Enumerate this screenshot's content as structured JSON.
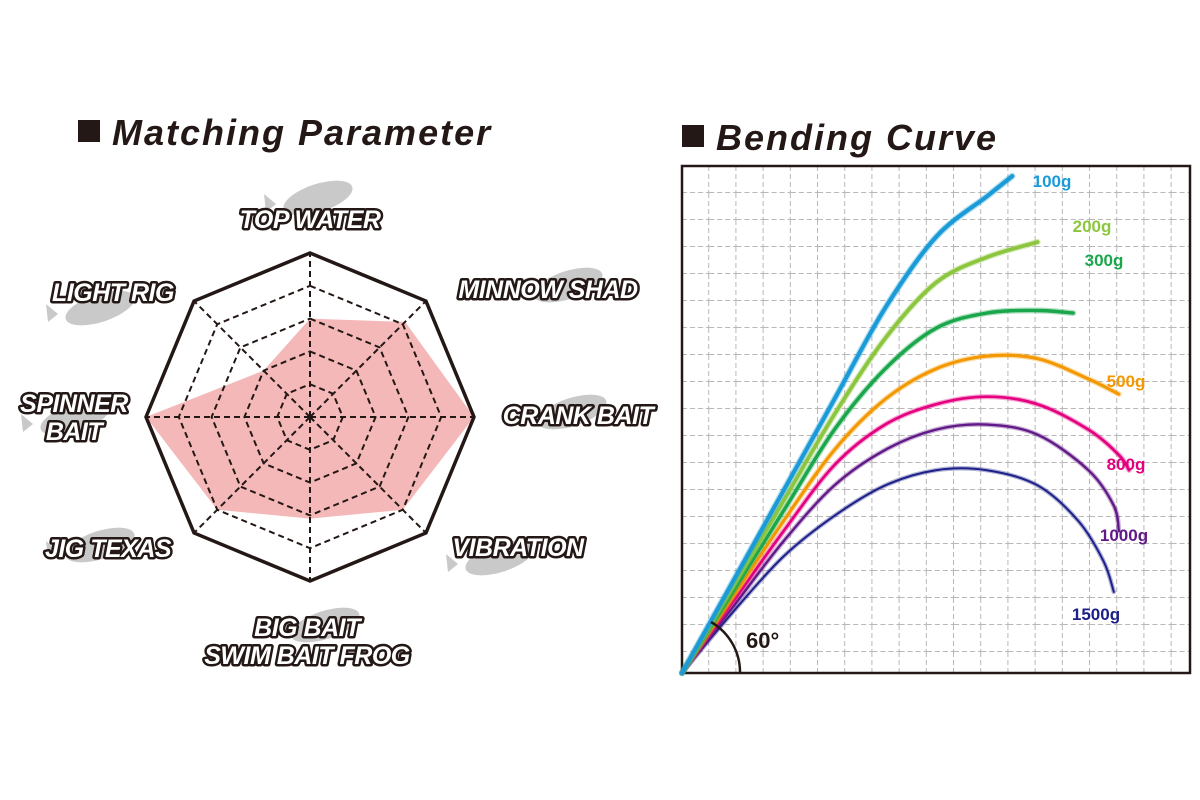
{
  "chart_data": [
    {
      "type": "radar",
      "title": "Matching Parameter",
      "axes": [
        "TOP WATER",
        "MINNOW SHAD",
        "CRANK BAIT",
        "VIBRATION",
        "BIG BAIT\nSWIM BAIT  FROG",
        "JIG  TEXAS",
        "SPINNER\nBAIT",
        "LIGHT RIG"
      ],
      "max": 5,
      "rings": 5,
      "values": [
        3.0,
        4.1,
        5.0,
        4.0,
        3.1,
        4.0,
        5.0,
        2.0
      ],
      "fill_color": "#f4b8b8",
      "grid": "dashed",
      "icons": [
        "top-water-lure-icon",
        "minnow-lure-icon",
        "crank-bait-lure-icon",
        "vibration-lure-icon",
        "swim-bait-lure-icon",
        "jig-lure-icon",
        "spinner-bait-lure-icon",
        "light-rig-lure-icon"
      ]
    },
    {
      "type": "line",
      "title": "Bending Curve",
      "angle_label": "60°",
      "grid": true,
      "xlim": [
        0,
        100
      ],
      "ylim": [
        0,
        100
      ],
      "series": [
        {
          "name": "100g",
          "color": "#1a9bd7",
          "points": [
            [
              0,
              0
            ],
            [
              10,
              18
            ],
            [
              20,
              36
            ],
            [
              30,
              54
            ],
            [
              40,
              72
            ],
            [
              50,
              86
            ],
            [
              60,
              94
            ],
            [
              65,
              98
            ]
          ]
        },
        {
          "name": "200g",
          "color": "#8cc63f",
          "points": [
            [
              0,
              0
            ],
            [
              10,
              17
            ],
            [
              20,
              34
            ],
            [
              30,
              51
            ],
            [
              40,
              66
            ],
            [
              50,
              77
            ],
            [
              60,
              82
            ],
            [
              70,
              85
            ]
          ]
        },
        {
          "name": "300g",
          "color": "#1aa64a",
          "points": [
            [
              0,
              0
            ],
            [
              10,
              16
            ],
            [
              20,
              32
            ],
            [
              30,
              48
            ],
            [
              40,
              60
            ],
            [
              50,
              68
            ],
            [
              60,
              71
            ],
            [
              70,
              71.5
            ],
            [
              77,
              71
            ]
          ]
        },
        {
          "name": "500g",
          "color": "#f39800",
          "points": [
            [
              0,
              0
            ],
            [
              10,
              15
            ],
            [
              20,
              30
            ],
            [
              30,
              44
            ],
            [
              40,
              54
            ],
            [
              50,
              60
            ],
            [
              60,
              62.5
            ],
            [
              70,
              62
            ],
            [
              80,
              58
            ],
            [
              86,
              55
            ]
          ]
        },
        {
          "name": "800g",
          "color": "#e4007f",
          "points": [
            [
              0,
              0
            ],
            [
              10,
              14
            ],
            [
              20,
              28
            ],
            [
              30,
              41
            ],
            [
              40,
              49
            ],
            [
              50,
              53
            ],
            [
              60,
              54.5
            ],
            [
              70,
              53
            ],
            [
              80,
              48
            ],
            [
              86,
              43
            ],
            [
              88,
              40
            ]
          ]
        },
        {
          "name": "1000g",
          "color": "#601986",
          "points": [
            [
              0,
              0
            ],
            [
              10,
              13
            ],
            [
              20,
              26
            ],
            [
              30,
              37
            ],
            [
              40,
              44
            ],
            [
              50,
              48
            ],
            [
              60,
              49
            ],
            [
              70,
              47
            ],
            [
              80,
              40
            ],
            [
              85,
              33
            ],
            [
              86,
              28
            ]
          ]
        },
        {
          "name": "1500g",
          "color": "#1d2088",
          "points": [
            [
              0,
              0
            ],
            [
              10,
              12
            ],
            [
              20,
              23
            ],
            [
              30,
              31
            ],
            [
              40,
              37
            ],
            [
              50,
              40
            ],
            [
              60,
              40
            ],
            [
              70,
              37
            ],
            [
              78,
              30
            ],
            [
              83,
              22
            ],
            [
              85,
              16
            ]
          ]
        }
      ]
    }
  ]
}
